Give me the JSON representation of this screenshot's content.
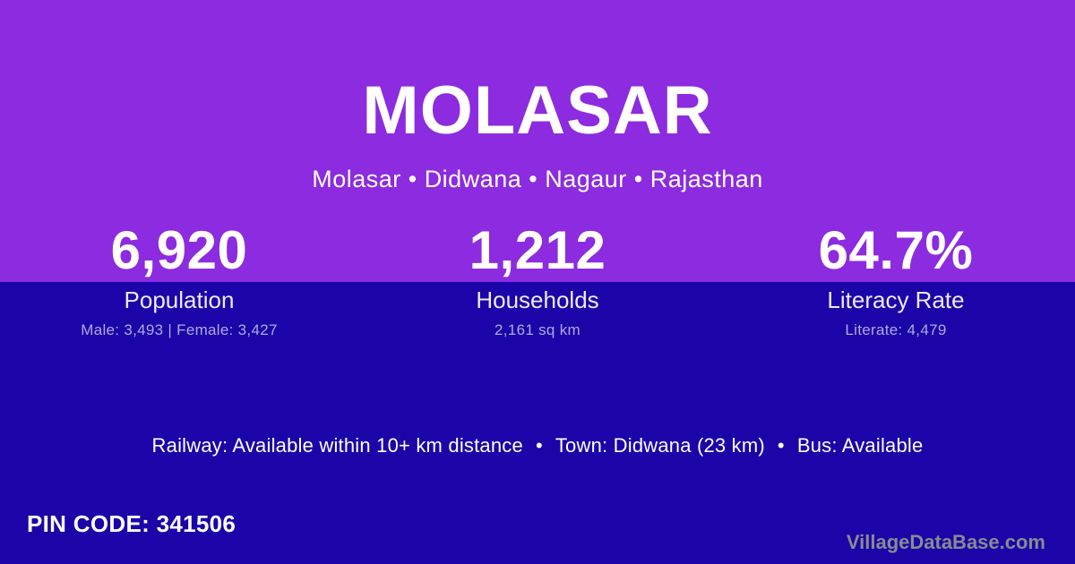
{
  "theme": {
    "top_bg": "#8C2BDF",
    "bottom_bg": "#1B04A8",
    "text_color": "#FFFFFF",
    "label_color": "#EFEAF9",
    "muted_color": "rgba(255,255,255,0.65)",
    "watermark_color": "#8A8A92"
  },
  "header": {
    "title": "MOLASAR",
    "breadcrumb": "Molasar • Didwana • Nagaur • Rajasthan"
  },
  "stats": [
    {
      "value": "6,920",
      "label": "Population",
      "detail": "Male: 3,493 | Female: 3,427"
    },
    {
      "value": "1,212",
      "label": "Households",
      "detail": "2,161 sq km"
    },
    {
      "value": "64.7%",
      "label": "Literacy Rate",
      "detail": "Literate: 4,479"
    }
  ],
  "info": {
    "separator": "•",
    "items": [
      "Railway: Available within 10+ km distance",
      "Town: Didwana (23 km)",
      "Bus: Available"
    ]
  },
  "footer": {
    "pin_code": "PIN CODE: 341506",
    "watermark": "VillageDataBase.com"
  }
}
